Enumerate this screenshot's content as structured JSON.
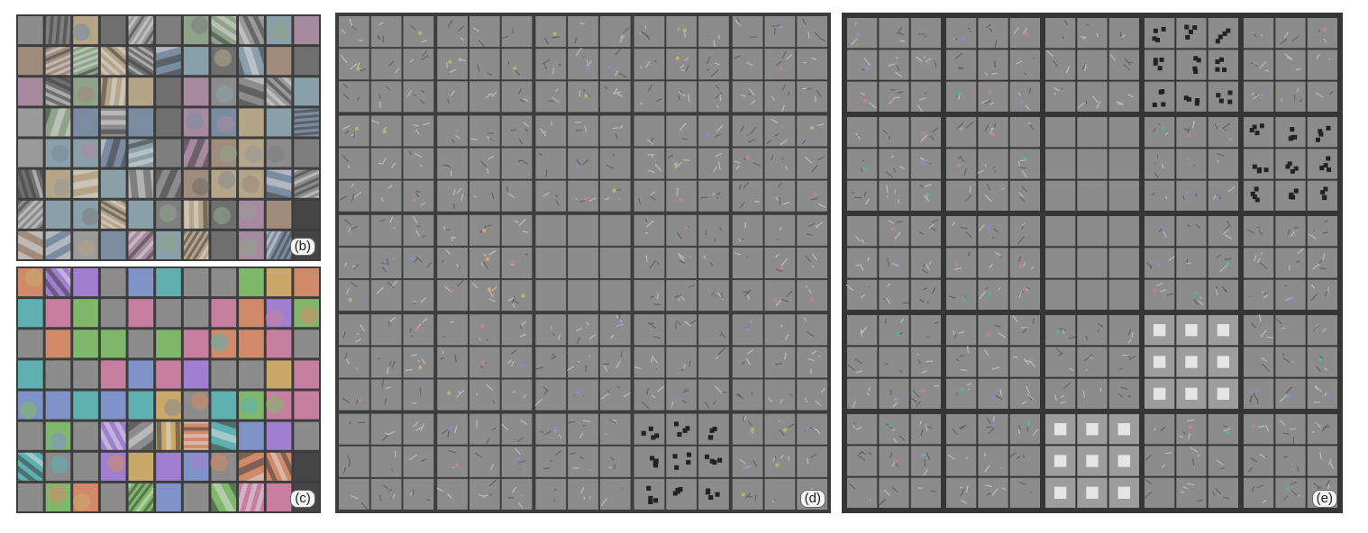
{
  "panels": [
    {
      "id": "b",
      "label": "(b)"
    },
    {
      "id": "c",
      "label": "(c)"
    },
    {
      "id": "d",
      "label": "(d)"
    },
    {
      "id": "e",
      "label": "(e)"
    }
  ],
  "colors": {
    "background": "#ffffff",
    "grid_border": "#3d3d3d",
    "patch_gray": "#8c8c8c",
    "edge_dark": "#5a5a5a",
    "edge_light": "#c8c8c8",
    "accent_teal": "#4fb89a",
    "accent_pink": "#c77fa0",
    "accent_blue": "#7f93c9"
  },
  "icons": [
    "filter-patch-grid",
    "feature-visualization-grid"
  ]
}
